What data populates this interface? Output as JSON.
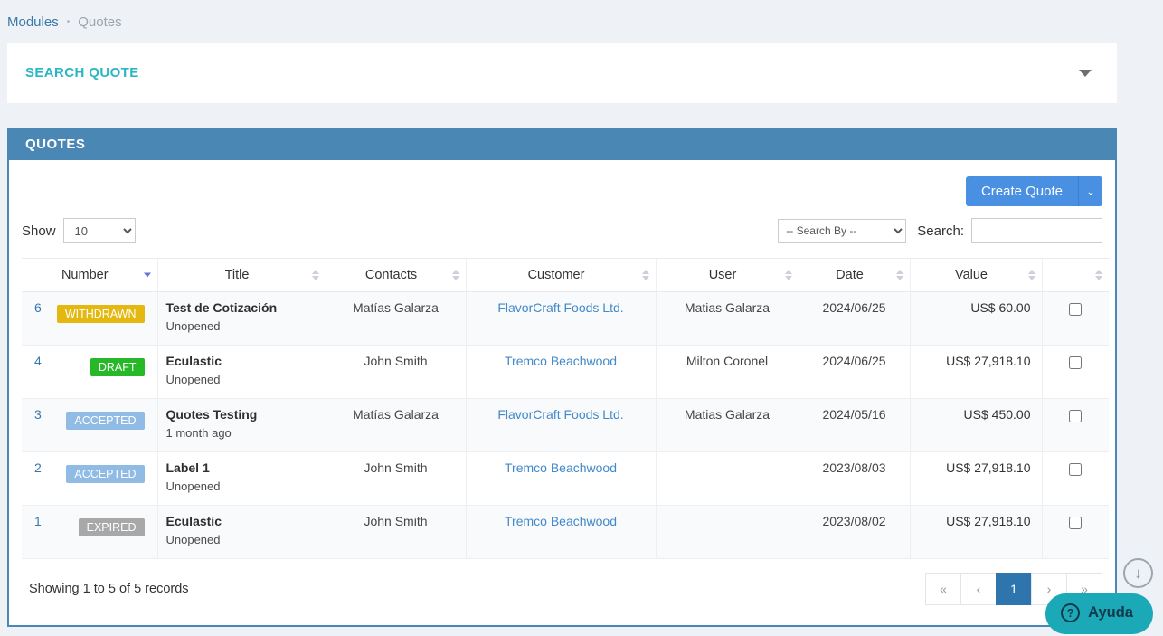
{
  "breadcrumb": {
    "module": "Modules",
    "separator": "•",
    "current": "Quotes"
  },
  "search_panel": {
    "title": "SEARCH QUOTE"
  },
  "quotes_panel": {
    "title": "QUOTES",
    "create_button": {
      "label": "Create Quote"
    },
    "controls": {
      "show_label": "Show",
      "page_size": "10",
      "search_by_placeholder": "-- Search By --",
      "search_label": "Search:",
      "search_value": ""
    },
    "table": {
      "columns": [
        {
          "label": "Number"
        },
        {
          "label": "Title"
        },
        {
          "label": "Contacts"
        },
        {
          "label": "Customer"
        },
        {
          "label": "User"
        },
        {
          "label": "Date"
        },
        {
          "label": "Value"
        },
        {
          "label": ""
        }
      ],
      "rows": [
        {
          "number": "6",
          "status": "WITHDRAWN",
          "status_color": "#e5b711",
          "title": "Test de Cotización",
          "subtitle": "Unopened",
          "contacts": "Matías Galarza",
          "customer": "FlavorCraft Foods Ltd.",
          "user": "Matias Galarza",
          "date": "2024/06/25",
          "value": "US$ 60.00"
        },
        {
          "number": "4",
          "status": "DRAFT",
          "status_color": "#26b826",
          "title": "Eculastic",
          "subtitle": "Unopened",
          "contacts": "John Smith",
          "customer": "Tremco Beachwood",
          "user": "Milton Coronel",
          "date": "2024/06/25",
          "value": "US$ 27,918.10"
        },
        {
          "number": "3",
          "status": "ACCEPTED",
          "status_color": "#8fbbe5",
          "title": "Quotes Testing",
          "subtitle": "1 month ago",
          "contacts": "Matías Galarza",
          "customer": "FlavorCraft Foods Ltd.",
          "user": "Matias Galarza",
          "date": "2024/05/16",
          "value": "US$ 450.00"
        },
        {
          "number": "2",
          "status": "ACCEPTED",
          "status_color": "#8fbbe5",
          "title": "Label 1",
          "subtitle": "Unopened",
          "contacts": "John Smith",
          "customer": "Tremco Beachwood",
          "user": "",
          "date": "2023/08/03",
          "value": "US$ 27,918.10"
        },
        {
          "number": "1",
          "status": "EXPIRED",
          "status_color": "#a8a8a8",
          "title": "Eculastic",
          "subtitle": "Unopened",
          "contacts": "John Smith",
          "customer": "Tremco Beachwood",
          "user": "",
          "date": "2023/08/02",
          "value": "US$ 27,918.10"
        }
      ]
    },
    "footer": {
      "summary": "Showing 1 to 5 of 5 records",
      "pagination": {
        "first": "«",
        "prev": "‹",
        "page": "1",
        "next": "›",
        "last": "»"
      }
    }
  },
  "floating": {
    "help_label": "Ayuda",
    "help_icon": "?",
    "scroll_icon": "↓"
  },
  "colors": {
    "accent_teal": "#2ab6c4",
    "panel_header_blue": "#4a87b5",
    "primary_button_blue": "#4a90e2",
    "active_page_blue": "#2e74ad",
    "help_teal": "#1ba9b8"
  }
}
